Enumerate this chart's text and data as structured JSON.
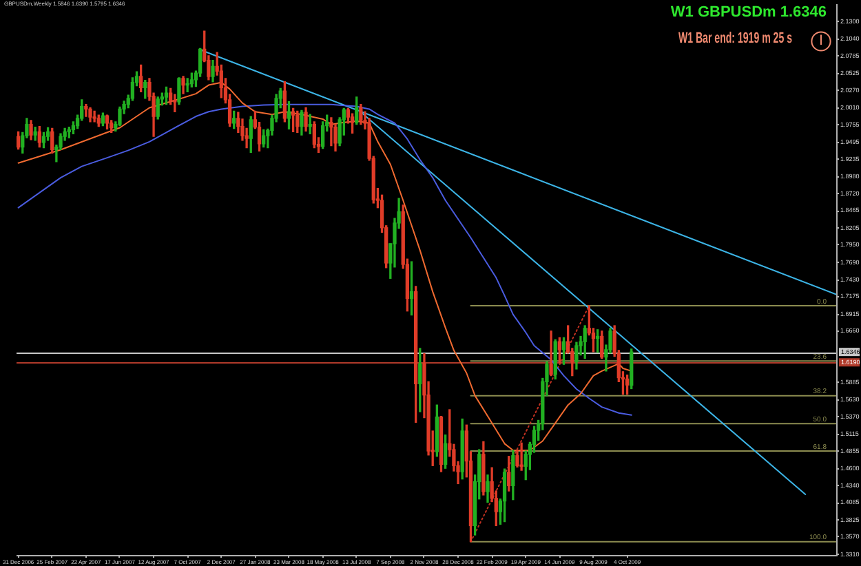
{
  "chart_data": {
    "type": "candlestick",
    "title": "W1 GBPUSDm 1.6346",
    "annotations": [
      "GBPUSDm,Weekly 1.5846 1.6390 1.5795 1.6346",
      "W1 Bar end: 1919 m 25 s"
    ],
    "x": [
      "2006-12-31",
      "2007-01-07",
      "2007-01-14",
      "2007-01-21",
      "2007-01-28",
      "2007-02-04",
      "2007-02-11",
      "2007-02-18",
      "2007-02-25",
      "2007-03-04",
      "2007-03-11",
      "2007-03-18",
      "2007-03-25",
      "2007-04-01",
      "2007-04-08",
      "2007-04-15",
      "2007-04-22",
      "2007-04-29",
      "2007-05-06",
      "2007-05-13",
      "2007-05-20",
      "2007-05-27",
      "2007-06-03",
      "2007-06-10",
      "2007-06-17",
      "2007-06-24",
      "2007-07-01",
      "2007-07-08",
      "2007-07-15",
      "2007-07-22",
      "2007-07-29",
      "2007-08-05",
      "2007-08-12",
      "2007-08-19",
      "2007-08-26",
      "2007-09-02",
      "2007-09-09",
      "2007-09-16",
      "2007-09-23",
      "2007-09-30",
      "2007-10-07",
      "2007-10-14",
      "2007-10-21",
      "2007-10-28",
      "2007-11-04",
      "2007-11-11",
      "2007-11-18",
      "2007-11-25",
      "2007-12-02",
      "2007-12-09",
      "2007-12-16",
      "2007-12-23",
      "2007-12-30",
      "2008-01-06",
      "2008-01-13",
      "2008-01-20",
      "2008-01-27",
      "2008-02-03",
      "2008-02-10",
      "2008-02-17",
      "2008-02-24",
      "2008-03-02",
      "2008-03-09",
      "2008-03-16",
      "2008-03-23",
      "2008-03-30",
      "2008-04-06",
      "2008-04-13",
      "2008-04-20",
      "2008-04-27",
      "2008-05-04",
      "2008-05-11",
      "2008-05-18",
      "2008-05-25",
      "2008-06-01",
      "2008-06-08",
      "2008-06-15",
      "2008-06-22",
      "2008-06-29",
      "2008-07-06",
      "2008-07-13",
      "2008-07-20",
      "2008-07-27",
      "2008-08-03",
      "2008-08-10",
      "2008-08-17",
      "2008-08-24",
      "2008-08-31",
      "2008-09-07",
      "2008-09-14",
      "2008-09-21",
      "2008-09-28",
      "2008-10-05",
      "2008-10-12",
      "2008-10-19",
      "2008-10-26",
      "2008-11-02",
      "2008-11-09",
      "2008-11-16",
      "2008-11-23",
      "2008-11-30",
      "2008-12-07",
      "2008-12-14",
      "2008-12-21",
      "2008-12-28",
      "2009-01-04",
      "2009-01-11",
      "2009-01-18",
      "2009-01-25",
      "2009-02-01",
      "2009-02-08",
      "2009-02-15",
      "2009-02-22",
      "2009-03-01",
      "2009-03-08",
      "2009-03-15",
      "2009-03-22",
      "2009-03-29",
      "2009-04-05",
      "2009-04-12",
      "2009-04-19",
      "2009-04-26",
      "2009-05-03",
      "2009-05-10",
      "2009-05-17",
      "2009-05-24",
      "2009-05-31",
      "2009-06-07",
      "2009-06-14",
      "2009-06-21",
      "2009-06-28",
      "2009-07-05",
      "2009-07-12",
      "2009-07-19",
      "2009-07-26",
      "2009-08-02",
      "2009-08-09",
      "2009-08-16",
      "2009-08-23",
      "2009-08-30",
      "2009-09-06",
      "2009-09-13",
      "2009-09-20",
      "2009-09-27",
      "2009-10-04",
      "2009-10-11"
    ],
    "ohlc": [
      [
        1.958,
        1.965,
        1.939,
        1.942
      ],
      [
        1.942,
        1.964,
        1.933,
        1.959
      ],
      [
        1.959,
        1.985,
        1.956,
        1.976
      ],
      [
        1.976,
        1.982,
        1.953,
        1.96
      ],
      [
        1.96,
        1.972,
        1.952,
        1.965
      ],
      [
        1.965,
        1.973,
        1.942,
        1.949
      ],
      [
        1.949,
        1.964,
        1.941,
        1.958
      ],
      [
        1.958,
        1.971,
        1.952,
        1.965
      ],
      [
        1.965,
        1.97,
        1.933,
        1.938
      ],
      [
        1.938,
        1.945,
        1.92,
        1.942
      ],
      [
        1.942,
        1.962,
        1.938,
        1.958
      ],
      [
        1.958,
        1.97,
        1.952,
        1.965
      ],
      [
        1.965,
        1.972,
        1.956,
        1.968
      ],
      [
        1.968,
        1.98,
        1.962,
        1.974
      ],
      [
        1.974,
        1.99,
        1.97,
        1.985
      ],
      [
        1.985,
        2.013,
        1.982,
        2.003
      ],
      [
        2.003,
        2.006,
        1.988,
        1.999
      ],
      [
        1.999,
        2.001,
        1.98,
        1.987
      ],
      [
        1.987,
        1.996,
        1.98,
        1.985
      ],
      [
        1.985,
        1.99,
        1.973,
        1.978
      ],
      [
        1.978,
        1.993,
        1.974,
        1.989
      ],
      [
        1.989,
        1.99,
        1.969,
        1.978
      ],
      [
        1.978,
        1.982,
        1.964,
        1.971
      ],
      [
        1.971,
        1.98,
        1.966,
        1.976
      ],
      [
        1.976,
        2.002,
        1.974,
        1.999
      ],
      [
        1.999,
        2.011,
        1.992,
        2.006
      ],
      [
        2.006,
        2.02,
        2.001,
        2.015
      ],
      [
        2.015,
        2.046,
        2.012,
        2.039
      ],
      [
        2.039,
        2.055,
        2.034,
        2.048
      ],
      [
        2.048,
        2.065,
        2.025,
        2.031
      ],
      [
        2.031,
        2.042,
        2.015,
        2.039
      ],
      [
        2.039,
        2.045,
        2.012,
        2.018
      ],
      [
        2.018,
        2.023,
        1.958,
        1.988
      ],
      [
        1.988,
        2.017,
        1.984,
        2.014
      ],
      [
        2.014,
        2.023,
        2.005,
        2.017
      ],
      [
        2.017,
        2.032,
        2.006,
        2.023
      ],
      [
        2.023,
        2.03,
        2.006,
        2.012
      ],
      [
        2.012,
        2.021,
        1.995,
        2.01
      ],
      [
        2.01,
        2.046,
        2.006,
        2.045
      ],
      [
        2.045,
        2.048,
        2.022,
        2.035
      ],
      [
        2.035,
        2.045,
        2.025,
        2.037
      ],
      [
        2.037,
        2.053,
        2.032,
        2.043
      ],
      [
        2.043,
        2.056,
        2.033,
        2.053
      ],
      [
        2.053,
        2.09,
        2.048,
        2.089
      ],
      [
        2.089,
        2.116,
        2.07,
        2.072
      ],
      [
        2.072,
        2.079,
        2.043,
        2.048
      ],
      [
        2.048,
        2.072,
        2.04,
        2.063
      ],
      [
        2.063,
        2.084,
        2.05,
        2.056
      ],
      [
        2.056,
        2.065,
        2.016,
        2.031
      ],
      [
        2.031,
        2.045,
        2.008,
        2.013
      ],
      [
        2.013,
        2.021,
        1.973,
        1.978
      ],
      [
        1.978,
        1.996,
        1.97,
        1.985
      ],
      [
        1.985,
        1.994,
        1.964,
        1.973
      ],
      [
        1.973,
        1.984,
        1.952,
        1.959
      ],
      [
        1.959,
        1.97,
        1.941,
        1.955
      ],
      [
        1.955,
        1.988,
        1.934,
        1.983
      ],
      [
        1.983,
        1.996,
        1.97,
        1.972
      ],
      [
        1.972,
        1.979,
        1.936,
        1.947
      ],
      [
        1.947,
        1.968,
        1.942,
        1.959
      ],
      [
        1.959,
        1.969,
        1.941,
        1.967
      ],
      [
        1.967,
        1.99,
        1.96,
        1.985
      ],
      [
        1.985,
        2.021,
        1.98,
        2.015
      ],
      [
        2.015,
        2.03,
        2.001,
        2.026
      ],
      [
        2.026,
        2.04,
        1.98,
        1.985
      ],
      [
        1.985,
        2.01,
        1.969,
        1.995
      ],
      [
        1.995,
        2.0,
        1.965,
        1.99
      ],
      [
        1.99,
        1.996,
        1.964,
        1.973
      ],
      [
        1.973,
        1.997,
        1.96,
        1.994
      ],
      [
        1.994,
        2.001,
        1.966,
        1.973
      ],
      [
        1.973,
        1.991,
        1.962,
        1.976
      ],
      [
        1.976,
        1.98,
        1.941,
        1.946
      ],
      [
        1.946,
        1.956,
        1.934,
        1.943
      ],
      [
        1.943,
        1.98,
        1.94,
        1.974
      ],
      [
        1.974,
        1.99,
        1.966,
        1.979
      ],
      [
        1.979,
        1.986,
        1.944,
        1.972
      ],
      [
        1.972,
        1.976,
        1.936,
        1.948
      ],
      [
        1.948,
        1.986,
        1.944,
        1.983
      ],
      [
        1.983,
        2.0,
        1.96,
        1.998
      ],
      [
        1.998,
        2.0,
        1.978,
        1.987
      ],
      [
        1.987,
        1.992,
        1.963,
        1.979
      ],
      [
        1.979,
        2.017,
        1.976,
        2.001
      ],
      [
        2.001,
        2.006,
        1.976,
        1.982
      ],
      [
        1.982,
        1.995,
        1.969,
        1.978
      ],
      [
        1.978,
        1.985,
        1.922,
        1.925
      ],
      [
        1.925,
        1.928,
        1.858,
        1.863
      ],
      [
        1.863,
        1.88,
        1.851,
        1.862
      ],
      [
        1.862,
        1.87,
        1.814,
        1.821
      ],
      [
        1.821,
        1.824,
        1.761,
        1.768
      ],
      [
        1.768,
        1.797,
        1.745,
        1.797
      ],
      [
        1.797,
        1.835,
        1.762,
        1.828
      ],
      [
        1.828,
        1.865,
        1.82,
        1.845
      ],
      [
        1.845,
        1.855,
        1.76,
        1.766
      ],
      [
        1.766,
        1.774,
        1.696,
        1.715
      ],
      [
        1.715,
        1.77,
        1.69,
        1.725
      ],
      [
        1.725,
        1.733,
        1.529,
        1.587
      ],
      [
        1.587,
        1.64,
        1.545,
        1.617
      ],
      [
        1.617,
        1.632,
        1.536,
        1.57
      ],
      [
        1.57,
        1.59,
        1.48,
        1.486
      ],
      [
        1.486,
        1.516,
        1.464,
        1.485
      ],
      [
        1.485,
        1.555,
        1.478,
        1.537
      ],
      [
        1.537,
        1.538,
        1.455,
        1.466
      ],
      [
        1.466,
        1.51,
        1.46,
        1.497
      ],
      [
        1.497,
        1.548,
        1.478,
        1.488
      ],
      [
        1.488,
        1.496,
        1.456,
        1.464
      ],
      [
        1.464,
        1.47,
        1.437,
        1.455
      ],
      [
        1.455,
        1.534,
        1.444,
        1.516
      ],
      [
        1.516,
        1.525,
        1.447,
        1.471
      ],
      [
        1.471,
        1.485,
        1.35,
        1.374
      ],
      [
        1.374,
        1.45,
        1.36,
        1.44
      ],
      [
        1.44,
        1.488,
        1.414,
        1.481
      ],
      [
        1.481,
        1.5,
        1.42,
        1.425
      ],
      [
        1.425,
        1.45,
        1.409,
        1.44
      ],
      [
        1.44,
        1.461,
        1.41,
        1.415
      ],
      [
        1.415,
        1.426,
        1.374,
        1.395
      ],
      [
        1.395,
        1.414,
        1.376,
        1.411
      ],
      [
        1.411,
        1.459,
        1.38,
        1.454
      ],
      [
        1.454,
        1.478,
        1.426,
        1.434
      ],
      [
        1.434,
        1.487,
        1.413,
        1.479
      ],
      [
        1.479,
        1.487,
        1.462,
        1.464
      ],
      [
        1.464,
        1.498,
        1.457,
        1.463
      ],
      [
        1.463,
        1.486,
        1.443,
        1.481
      ],
      [
        1.481,
        1.499,
        1.458,
        1.496
      ],
      [
        1.496,
        1.523,
        1.484,
        1.517
      ],
      [
        1.517,
        1.532,
        1.502,
        1.527
      ],
      [
        1.527,
        1.595,
        1.518,
        1.59
      ],
      [
        1.59,
        1.62,
        1.569,
        1.616
      ],
      [
        1.616,
        1.666,
        1.599,
        1.601
      ],
      [
        1.601,
        1.653,
        1.594,
        1.65
      ],
      [
        1.65,
        1.656,
        1.618,
        1.638
      ],
      [
        1.638,
        1.656,
        1.616,
        1.65
      ],
      [
        1.65,
        1.674,
        1.633,
        1.635
      ],
      [
        1.635,
        1.64,
        1.599,
        1.62
      ],
      [
        1.62,
        1.649,
        1.609,
        1.644
      ],
      [
        1.644,
        1.658,
        1.63,
        1.65
      ],
      [
        1.65,
        1.674,
        1.625,
        1.67
      ],
      [
        1.67,
        1.704,
        1.66,
        1.663
      ],
      [
        1.663,
        1.67,
        1.635,
        1.655
      ],
      [
        1.655,
        1.668,
        1.634,
        1.658
      ],
      [
        1.658,
        1.666,
        1.625,
        1.627
      ],
      [
        1.627,
        1.645,
        1.606,
        1.638
      ],
      [
        1.638,
        1.67,
        1.633,
        1.666
      ],
      [
        1.666,
        1.674,
        1.628,
        1.632
      ],
      [
        1.632,
        1.637,
        1.59,
        1.596
      ],
      [
        1.596,
        1.605,
        1.571,
        1.594
      ],
      [
        1.594,
        1.6,
        1.571,
        1.585
      ],
      [
        1.5846,
        1.639,
        1.5795,
        1.6346
      ]
    ],
    "colors": [
      "#e03c28",
      "#22b022",
      "#22b022",
      "#e03c28",
      "#22b022",
      "#e03c28",
      "#22b022",
      "#22b022",
      "#e03c28",
      "#22b022",
      "#22b022",
      "#22b022",
      "#22b022",
      "#22b022",
      "#22b022",
      "#22b022",
      "#e03c28",
      "#e03c28",
      "#e03c28",
      "#e03c28",
      "#22b022",
      "#e03c28",
      "#e03c28",
      "#22b022",
      "#22b022",
      "#22b022",
      "#22b022",
      "#22b022",
      "#22b022",
      "#e03c28",
      "#22b022",
      "#e03c28",
      "#e03c28",
      "#22b022",
      "#22b022",
      "#22b022",
      "#e03c28",
      "#e03c28",
      "#22b022",
      "#e03c28",
      "#22b022",
      "#22b022",
      "#22b022",
      "#22b022",
      "#e03c28",
      "#e03c28",
      "#22b022",
      "#e03c28",
      "#e03c28",
      "#e03c28",
      "#e03c28",
      "#22b022",
      "#e03c28",
      "#e03c28",
      "#e03c28",
      "#22b022",
      "#e03c28",
      "#e03c28",
      "#22b022",
      "#22b022",
      "#22b022",
      "#22b022",
      "#22b022",
      "#e03c28",
      "#22b022",
      "#e03c28",
      "#e03c28",
      "#22b022",
      "#e03c28",
      "#22b022",
      "#e03c28",
      "#e03c28",
      "#22b022",
      "#22b022",
      "#e03c28",
      "#e03c28",
      "#22b022",
      "#22b022",
      "#e03c28",
      "#e03c28",
      "#22b022",
      "#e03c28",
      "#e03c28",
      "#e03c28",
      "#e03c28",
      "#e03c28",
      "#e03c28",
      "#e03c28",
      "#22b022",
      "#22b022",
      "#22b022",
      "#e03c28",
      "#e03c28",
      "#22b022",
      "#e03c28",
      "#22b022",
      "#e03c28",
      "#e03c28",
      "#e03c28",
      "#22b022",
      "#e03c28",
      "#22b022",
      "#e03c28",
      "#e03c28",
      "#e03c28",
      "#22b022",
      "#e03c28",
      "#e03c28",
      "#22b022",
      "#22b022",
      "#e03c28",
      "#22b022",
      "#e03c28",
      "#e03c28",
      "#22b022",
      "#22b022",
      "#e03c28",
      "#22b022",
      "#e03c28",
      "#e03c28",
      "#22b022",
      "#22b022",
      "#22b022",
      "#22b022",
      "#22b022",
      "#22b022",
      "#e03c28",
      "#22b022",
      "#e03c28",
      "#22b022",
      "#e03c28",
      "#e03c28",
      "#22b022",
      "#22b022",
      "#22b022",
      "#e03c28",
      "#e03c28",
      "#22b022",
      "#e03c28",
      "#22b022",
      "#22b022",
      "#e03c28",
      "#e03c28",
      "#e03c28",
      "#e03c28",
      "#22b022"
    ],
    "series": [
      {
        "type": "line",
        "color": "#f06a30",
        "x": [
          "2006-12-31",
          "2007-03-11",
          "2007-05-27",
          "2007-06-17",
          "2007-08-05",
          "2007-09-16",
          "2007-10-21",
          "2007-11-11",
          "2007-12-02",
          "2007-12-16",
          "2008-01-06",
          "2008-01-27",
          "2008-02-24",
          "2008-03-16",
          "2008-04-13",
          "2008-05-18",
          "2008-06-01",
          "2008-06-22",
          "2008-07-13",
          "2008-08-03",
          "2008-08-17",
          "2008-09-07",
          "2008-09-28",
          "2008-10-26",
          "2008-11-16",
          "2008-12-07",
          "2008-12-21",
          "2009-01-11",
          "2009-01-25",
          "2009-02-22",
          "2009-03-15",
          "2009-03-29",
          "2009-04-26",
          "2009-05-17",
          "2009-06-07",
          "2009-06-28",
          "2009-07-19",
          "2009-08-09",
          "2009-08-23",
          "2009-09-20",
          "2009-09-27",
          "2009-10-11"
        ],
        "values": [
          1.918,
          1.938,
          1.964,
          1.971,
          2.001,
          2.012,
          2.022,
          2.035,
          2.039,
          2.029,
          2.008,
          1.995,
          1.991,
          1.995,
          1.991,
          1.984,
          1.976,
          1.979,
          1.981,
          1.978,
          1.95,
          1.916,
          1.862,
          1.787,
          1.725,
          1.671,
          1.637,
          1.603,
          1.569,
          1.528,
          1.497,
          1.487,
          1.487,
          1.501,
          1.528,
          1.555,
          1.572,
          1.599,
          1.606,
          1.617,
          1.61,
          1.606
        ]
      },
      {
        "type": "line",
        "color": "#4a5ce0",
        "x": [
          "2006-12-31",
          "2007-03-11",
          "2007-04-15",
          "2007-05-27",
          "2007-07-01",
          "2007-08-05",
          "2007-09-16",
          "2007-10-21",
          "2007-11-11",
          "2007-12-02",
          "2008-01-06",
          "2008-02-10",
          "2008-03-16",
          "2008-06-01",
          "2008-07-13",
          "2008-08-03",
          "2008-08-17",
          "2008-09-14",
          "2008-10-05",
          "2008-10-26",
          "2008-11-16",
          "2008-12-07",
          "2009-01-18",
          "2009-03-01",
          "2009-03-15",
          "2009-03-29",
          "2009-04-19",
          "2009-05-03",
          "2009-05-31",
          "2009-06-21",
          "2009-07-12",
          "2009-08-02",
          "2009-08-23",
          "2009-09-20",
          "2009-10-11"
        ],
        "values": [
          1.851,
          1.896,
          1.913,
          1.926,
          1.937,
          1.95,
          1.971,
          1.988,
          1.995,
          1.999,
          2.003,
          2.005,
          2.006,
          2.006,
          2.003,
          1.999,
          1.991,
          1.978,
          1.954,
          1.923,
          1.896,
          1.862,
          1.806,
          1.746,
          1.719,
          1.691,
          1.664,
          1.644,
          1.623,
          1.599,
          1.579,
          1.565,
          1.552,
          1.543,
          1.54
        ]
      },
      {
        "type": "line",
        "color": "#3cb4e6",
        "x": [
          "2007-10-28",
          "2010-09-15"
        ],
        "values": [
          2.088,
          1.721
        ]
      },
      {
        "type": "line",
        "color": "#3cb4e6",
        "x": [
          "2008-07-18",
          "2010-07-26"
        ],
        "values": [
          1.996,
          1.421
        ]
      },
      {
        "type": "line",
        "color": "#c03020",
        "line_style": "dotted",
        "x": [
          "2009-01-18",
          "2009-08-02"
        ],
        "values": [
          1.35,
          1.704
        ]
      },
      {
        "type": "line",
        "name": "0.0",
        "color": "#8c8c50",
        "x": [
          "2009-01-18",
          "2010-09-15"
        ],
        "values": [
          1.704,
          1.704
        ]
      },
      {
        "type": "line",
        "name": "23.6",
        "color": "#8c8c50",
        "x": [
          "2009-01-18",
          "2010-09-15"
        ],
        "values": [
          1.621,
          1.621
        ]
      },
      {
        "type": "line",
        "name": "38.2",
        "color": "#8c8c50",
        "x": [
          "2009-01-18",
          "2010-09-15"
        ],
        "values": [
          1.569,
          1.569
        ]
      },
      {
        "type": "line",
        "name": "50.0",
        "color": "#8c8c50",
        "x": [
          "2009-01-18",
          "2010-09-15"
        ],
        "values": [
          1.527,
          1.527
        ]
      },
      {
        "type": "line",
        "name": "61.8",
        "color": "#8c8c50",
        "x": [
          "2009-01-18",
          "2010-09-15"
        ],
        "values": [
          1.486,
          1.486
        ]
      },
      {
        "type": "line",
        "name": "100.0",
        "color": "#8c8c50",
        "x": [
          "2009-01-18",
          "2010-09-15"
        ],
        "values": [
          1.35,
          1.35
        ]
      }
    ],
    "ref_lines": [
      {
        "axis": "y",
        "value": 1.6346,
        "label": "1.6346",
        "color": "#c8c8c8"
      },
      {
        "axis": "y",
        "value": 1.619,
        "label": "1.6190",
        "color": "#b03a2a"
      }
    ],
    "xlim": [
      "2006-12-28",
      "2010-09-15"
    ],
    "xticks": [
      {
        "value": "2006-12-31",
        "label": "31 Dec 2006"
      },
      {
        "value": "2007-02-25",
        "label": "25 Feb 2007"
      },
      {
        "value": "2007-04-22",
        "label": "22 Apr 2007"
      },
      {
        "value": "2007-06-17",
        "label": "17 Jun 2007"
      },
      {
        "value": "2007-08-12",
        "label": "12 Aug 2007"
      },
      {
        "value": "2007-10-07",
        "label": "7 Oct 2007"
      },
      {
        "value": "2007-12-02",
        "label": "2 Dec 2007"
      },
      {
        "value": "2008-01-27",
        "label": "27 Jan 2008"
      },
      {
        "value": "2008-03-23",
        "label": "23 Mar 2008"
      },
      {
        "value": "2008-05-18",
        "label": "18 May 2008"
      },
      {
        "value": "2008-07-13",
        "label": "13 Jul 2008"
      },
      {
        "value": "2008-09-07",
        "label": "7 Sep 2008"
      },
      {
        "value": "2008-11-02",
        "label": "2 Nov 2008"
      },
      {
        "value": "2008-12-28",
        "label": "28 Dec 2008"
      },
      {
        "value": "2009-02-22",
        "label": "22 Feb 2009"
      },
      {
        "value": "2009-04-19",
        "label": "19 Apr 2009"
      },
      {
        "value": "2009-06-14",
        "label": "14 Jun 2009"
      },
      {
        "value": "2009-08-09",
        "label": "9 Aug 2009"
      },
      {
        "value": "2009-10-04",
        "label": "4 Oct 2009"
      }
    ],
    "ylim": [
      1.33,
      2.155
    ],
    "yticks": [
      {
        "value": 1.331,
        "label": "1.3310"
      },
      {
        "value": 1.357,
        "label": "1.3570"
      },
      1.3825,
      1.4085,
      {
        "value": 1.434,
        "label": "1.4340"
      },
      {
        "value": 1.46,
        "label": "1.4600"
      },
      1.4855,
      1.5115,
      {
        "value": 1.537,
        "label": "1.5370"
      },
      {
        "value": 1.563,
        "label": "1.5630"
      },
      1.5885,
      {
        "value": 1.666,
        "label": "1.6660"
      },
      1.6915,
      1.7175,
      {
        "value": 1.743,
        "label": "1.7430"
      },
      {
        "value": 1.769,
        "label": "1.7690"
      },
      {
        "value": 1.795,
        "label": "1.7950"
      },
      1.8205,
      1.8465,
      {
        "value": 1.872,
        "label": "1.8720"
      },
      {
        "value": 1.898,
        "label": "1.8980"
      },
      1.9235,
      1.9495,
      1.9755,
      {
        "value": 2.001,
        "label": "2.0010"
      },
      {
        "value": 2.027,
        "label": "2.0270"
      },
      2.0525,
      2.0785,
      {
        "value": 2.104,
        "label": "2.1040"
      },
      {
        "value": 2.13,
        "label": "2.1300"
      }
    ]
  }
}
